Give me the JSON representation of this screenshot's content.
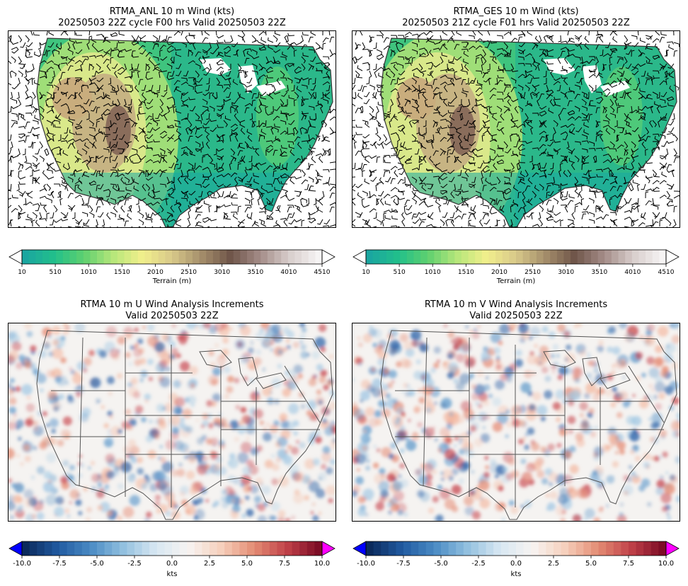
{
  "panels": [
    {
      "id": "anl",
      "title_line1": "RTMA_ANL 10 m Wind (kts)",
      "title_line2": "20250503 22Z cycle F00 hrs Valid 20250503 22Z"
    },
    {
      "id": "ges",
      "title_line1": "RTMA_GES 10 m Wind (kts)",
      "title_line2": "20250503 21Z cycle F01 hrs Valid 20250503 22Z"
    },
    {
      "id": "uinc",
      "title_line1": "RTMA 10 m U Wind Analysis Increments",
      "title_line2": "Valid 20250503 22Z"
    },
    {
      "id": "vinc",
      "title_line1": "RTMA 10 m V Wind Analysis Increments",
      "title_line2": "Valid 20250503 22Z"
    }
  ],
  "colorbars": {
    "terrain": {
      "label": "Terrain (m)",
      "ticks": [
        "10",
        "510",
        "1010",
        "1510",
        "2010",
        "2510",
        "3010",
        "3510",
        "4010",
        "4510"
      ],
      "range": [
        10,
        4510
      ],
      "colors": [
        "#1aa6a0",
        "#22c08a",
        "#5fd06f",
        "#b7e77b",
        "#f2ef8c",
        "#d8c98a",
        "#a58e6b",
        "#6f5549",
        "#a48c88",
        "#d8cecc",
        "#f6f4f4"
      ]
    },
    "increment": {
      "label": "kts",
      "ticks": [
        "-10.0",
        "-7.5",
        "-5.0",
        "-2.5",
        "0.0",
        "2.5",
        "5.0",
        "7.5",
        "10.0"
      ],
      "range": [
        -10,
        10
      ],
      "under_color": "#0000ff",
      "over_color": "#ff00ff",
      "colors": [
        "#0b2a5c",
        "#215aa0",
        "#4a8bc4",
        "#92c0df",
        "#d7e7f2",
        "#f7f4f2",
        "#f6d0bd",
        "#e48e75",
        "#c2434a",
        "#7d0d26"
      ]
    }
  }
}
